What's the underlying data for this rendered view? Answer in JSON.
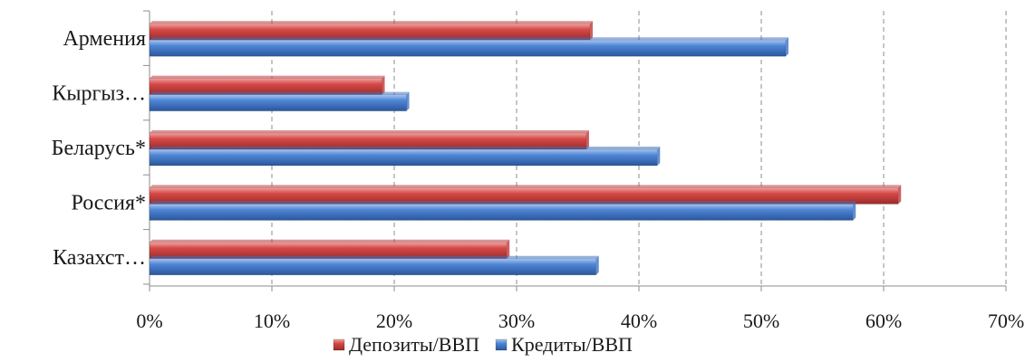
{
  "chart_data": {
    "type": "bar",
    "orientation": "horizontal",
    "categories": [
      "Армения",
      "Кыргыз…",
      "Беларусь*",
      "Россия*",
      "Казахст…"
    ],
    "series": [
      {
        "name": "Депозиты/ВВП",
        "values": [
          0.36,
          0.19,
          0.357,
          0.612,
          0.292
        ],
        "color": "#c0393b"
      },
      {
        "name": "Кредиты/ВВП",
        "values": [
          0.52,
          0.21,
          0.415,
          0.575,
          0.365
        ],
        "color": "#3f73c4"
      }
    ],
    "xlim": [
      0,
      0.7
    ],
    "x_ticks": [
      0,
      0.1,
      0.2,
      0.3,
      0.4,
      0.5,
      0.6,
      0.7
    ],
    "x_tick_labels": [
      "0%",
      "10%",
      "20%",
      "30%",
      "40%",
      "50%",
      "60%",
      "70%"
    ],
    "grid": true,
    "grid_style": "dashed vertical",
    "legend_position": "bottom"
  }
}
